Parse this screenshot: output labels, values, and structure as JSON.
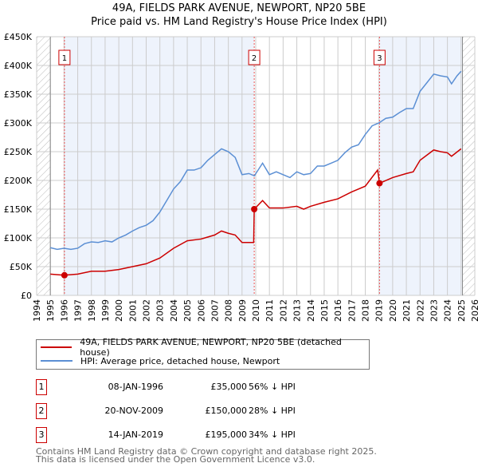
{
  "title": "49A, FIELDS PARK AVENUE, NEWPORT, NP20 5BE",
  "subtitle": "Price paid vs. HM Land Registry's House Price Index (HPI)",
  "chart_data": {
    "type": "line",
    "title": "49A, FIELDS PARK AVENUE, NEWPORT, NP20 5BE",
    "subtitle": "Price paid vs. HM Land Registry's House Price Index (HPI)",
    "xlim": [
      1994,
      2026
    ],
    "ylim": [
      0,
      450000
    ],
    "x_ticks": [
      "1994",
      "1995",
      "1996",
      "1997",
      "1998",
      "1999",
      "2000",
      "2001",
      "2002",
      "2003",
      "2004",
      "2005",
      "2006",
      "2007",
      "2008",
      "2009",
      "2010",
      "2011",
      "2012",
      "2013",
      "2014",
      "2015",
      "2016",
      "2017",
      "2018",
      "2019",
      "2020",
      "2021",
      "2022",
      "2023",
      "2024",
      "2025",
      "2026"
    ],
    "y_ticks": [
      {
        "v": 0,
        "label": "£0"
      },
      {
        "v": 50000,
        "label": "£50K"
      },
      {
        "v": 100000,
        "label": "£100K"
      },
      {
        "v": 150000,
        "label": "£150K"
      },
      {
        "v": 200000,
        "label": "£200K"
      },
      {
        "v": 250000,
        "label": "£250K"
      },
      {
        "v": 300000,
        "label": "£300K"
      },
      {
        "v": 350000,
        "label": "£350K"
      },
      {
        "v": 400000,
        "label": "£400K"
      },
      {
        "v": 450000,
        "label": "£450K"
      }
    ],
    "grid": true,
    "series": [
      {
        "name": "49A, FIELDS PARK AVENUE, NEWPORT, NP20 5BE (detached house)",
        "color": "#cc0000",
        "points": [
          [
            1995,
            37000
          ],
          [
            1996,
            35000
          ],
          [
            1997,
            37000
          ],
          [
            1998,
            42000
          ],
          [
            1999,
            42000
          ],
          [
            2000,
            45000
          ],
          [
            2001,
            50000
          ],
          [
            2002,
            55000
          ],
          [
            2003,
            65000
          ],
          [
            2004,
            82000
          ],
          [
            2005,
            95000
          ],
          [
            2006,
            98000
          ],
          [
            2007,
            105000
          ],
          [
            2007.5,
            112000
          ],
          [
            2008,
            108000
          ],
          [
            2008.5,
            105000
          ],
          [
            2009,
            92000
          ],
          [
            2009.85,
            92000
          ],
          [
            2009.89,
            150000
          ],
          [
            2010.5,
            165000
          ],
          [
            2011,
            152000
          ],
          [
            2012,
            152000
          ],
          [
            2013,
            155000
          ],
          [
            2013.5,
            150000
          ],
          [
            2014,
            155000
          ],
          [
            2015,
            162000
          ],
          [
            2016,
            168000
          ],
          [
            2017,
            180000
          ],
          [
            2018,
            190000
          ],
          [
            2018.9,
            218000
          ],
          [
            2019.04,
            195000
          ],
          [
            2020,
            205000
          ],
          [
            2021,
            212000
          ],
          [
            2021.5,
            215000
          ],
          [
            2022,
            235000
          ],
          [
            2023,
            253000
          ],
          [
            2023.5,
            250000
          ],
          [
            2024,
            248000
          ],
          [
            2024.3,
            242000
          ],
          [
            2025,
            255000
          ]
        ]
      },
      {
        "name": "HPI: Average price, detached house, Newport",
        "color": "#5b8fd4",
        "points": [
          [
            1995,
            83000
          ],
          [
            1995.5,
            80000
          ],
          [
            1996,
            82000
          ],
          [
            1996.5,
            80000
          ],
          [
            1997,
            82000
          ],
          [
            1997.5,
            90000
          ],
          [
            1998,
            93000
          ],
          [
            1998.5,
            92000
          ],
          [
            1999,
            95000
          ],
          [
            1999.5,
            93000
          ],
          [
            2000,
            100000
          ],
          [
            2000.5,
            105000
          ],
          [
            2001,
            112000
          ],
          [
            2001.5,
            118000
          ],
          [
            2002,
            122000
          ],
          [
            2002.5,
            130000
          ],
          [
            2003,
            145000
          ],
          [
            2003.5,
            165000
          ],
          [
            2004,
            185000
          ],
          [
            2004.5,
            198000
          ],
          [
            2005,
            218000
          ],
          [
            2005.5,
            218000
          ],
          [
            2006,
            222000
          ],
          [
            2006.5,
            235000
          ],
          [
            2007,
            245000
          ],
          [
            2007.5,
            255000
          ],
          [
            2008,
            250000
          ],
          [
            2008.5,
            240000
          ],
          [
            2009,
            210000
          ],
          [
            2009.5,
            212000
          ],
          [
            2009.9,
            208000
          ],
          [
            2010.5,
            230000
          ],
          [
            2011,
            210000
          ],
          [
            2011.5,
            215000
          ],
          [
            2012,
            210000
          ],
          [
            2012.5,
            205000
          ],
          [
            2013,
            215000
          ],
          [
            2013.5,
            210000
          ],
          [
            2014,
            212000
          ],
          [
            2014.5,
            225000
          ],
          [
            2015,
            225000
          ],
          [
            2015.5,
            230000
          ],
          [
            2016,
            235000
          ],
          [
            2016.5,
            248000
          ],
          [
            2017,
            258000
          ],
          [
            2017.5,
            262000
          ],
          [
            2018,
            280000
          ],
          [
            2018.5,
            295000
          ],
          [
            2019,
            300000
          ],
          [
            2019.5,
            308000
          ],
          [
            2020,
            310000
          ],
          [
            2020.5,
            318000
          ],
          [
            2021,
            325000
          ],
          [
            2021.5,
            325000
          ],
          [
            2022,
            355000
          ],
          [
            2022.5,
            370000
          ],
          [
            2023,
            385000
          ],
          [
            2023.5,
            382000
          ],
          [
            2024,
            380000
          ],
          [
            2024.3,
            368000
          ],
          [
            2024.7,
            382000
          ],
          [
            2025,
            390000
          ]
        ]
      }
    ],
    "sales": [
      {
        "n": "1",
        "x": 1996.03,
        "y": 35000
      },
      {
        "n": "2",
        "x": 2009.89,
        "y": 150000
      },
      {
        "n": "3",
        "x": 2019.04,
        "y": 195000
      }
    ],
    "shaded_ranges": [
      [
        1996.03,
        2009.89
      ],
      [
        2019.04,
        2025.1
      ]
    ],
    "hatched_ranges": [
      [
        1994,
        1995
      ],
      [
        2025.1,
        2026
      ]
    ],
    "legend": "below"
  },
  "legend": [
    {
      "label": "49A, FIELDS PARK AVENUE, NEWPORT, NP20 5BE (detached house)",
      "color": "#cc0000"
    },
    {
      "label": "HPI: Average price, detached house, Newport",
      "color": "#5b8fd4"
    }
  ],
  "transactions": [
    {
      "n": "1",
      "date": "08-JAN-1996",
      "price": "£35,000",
      "hpi": "56% ↓ HPI"
    },
    {
      "n": "2",
      "date": "20-NOV-2009",
      "price": "£150,000",
      "hpi": "28% ↓ HPI"
    },
    {
      "n": "3",
      "date": "14-JAN-2019",
      "price": "£195,000",
      "hpi": "34% ↓ HPI"
    }
  ],
  "footer": [
    "Contains HM Land Registry data © Crown copyright and database right 2025.",
    "This data is licensed under the Open Government Licence v3.0."
  ]
}
